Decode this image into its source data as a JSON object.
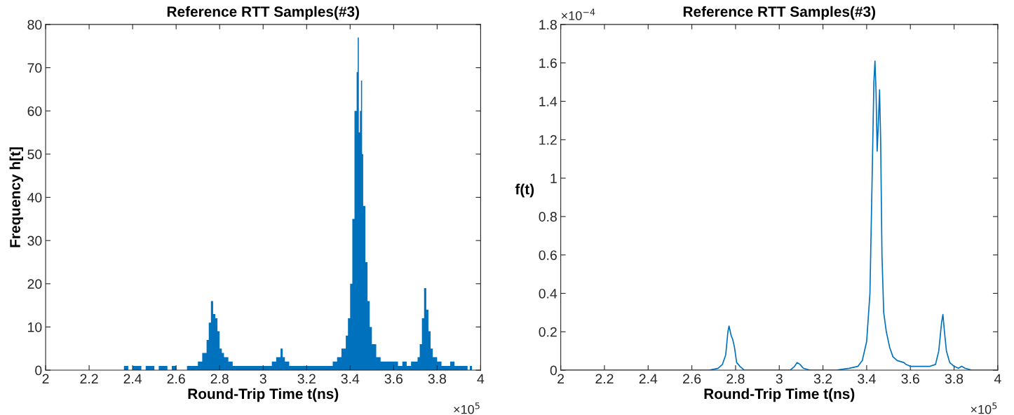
{
  "chart_data": [
    {
      "type": "histogram",
      "title": "Reference RTT Samples(#3)",
      "xlabel": "Round-Trip Time t(ns)",
      "ylabel": "Frequency h[t]",
      "color": "#0072bd",
      "bins": [
        2,
        2.36,
        2.38,
        2.4,
        2.42,
        2.44,
        2.46,
        2.48,
        2.5,
        2.52,
        2.54,
        2.56,
        2.58,
        2.6,
        2.62,
        2.65,
        2.7,
        2.72,
        2.74,
        2.75,
        2.76,
        2.77,
        2.78,
        2.79,
        2.8,
        2.81,
        2.82,
        2.84,
        2.86,
        2.88,
        3,
        3.04,
        3.06,
        3.08,
        3.09,
        3.1,
        3.12,
        3.16,
        3.2,
        3.32,
        3.34,
        3.36,
        3.38,
        3.39,
        3.4,
        3.41,
        3.42,
        3.43,
        3.435,
        3.44,
        3.445,
        3.45,
        3.455,
        3.46,
        3.47,
        3.48,
        3.49,
        3.5,
        3.52,
        3.54,
        3.6,
        3.62,
        3.64,
        3.66,
        3.68,
        3.71,
        3.72,
        3.73,
        3.74,
        3.75,
        3.76,
        3.77,
        3.78,
        3.8,
        3.82,
        3.86,
        3.88,
        3.94,
        3.95,
        3.96,
        4
      ],
      "values": [
        0,
        1,
        0,
        1,
        1,
        0,
        1,
        1,
        0,
        1,
        1,
        0,
        1,
        0,
        0,
        1,
        2,
        4,
        7,
        11,
        16,
        13,
        12,
        9,
        5,
        4,
        3,
        2,
        1,
        1,
        1,
        2,
        3,
        5,
        3,
        2,
        1,
        1,
        1,
        2,
        3,
        5,
        8,
        12,
        20,
        35,
        60,
        69,
        77,
        55,
        60,
        67,
        50,
        38,
        25,
        16,
        10,
        6,
        3,
        2,
        2,
        1,
        2,
        1,
        2,
        3,
        6,
        12,
        19,
        14,
        9,
        5,
        3,
        2,
        1,
        2,
        1,
        0,
        1,
        0
      ],
      "xlim": [
        2,
        4
      ],
      "xticks": [
        2,
        2.2,
        2.4,
        2.6,
        2.8,
        3,
        3.2,
        3.4,
        3.6,
        3.8,
        4
      ],
      "ylim": [
        0,
        80
      ],
      "yticks": [
        0,
        10,
        20,
        30,
        40,
        50,
        60,
        70,
        80
      ],
      "annotations": [
        "×10$^{5}$"
      ]
    },
    {
      "type": "line",
      "title": "Reference RTT Samples(#3)",
      "xlabel": "Round-Trip Time t(ns)",
      "ylabel": "f(t)",
      "x": [
        2,
        2.6,
        2.68,
        2.72,
        2.74,
        2.755,
        2.765,
        2.77,
        2.78,
        2.787,
        2.795,
        2.805,
        2.82,
        2.84,
        2.9,
        3,
        3.05,
        3.07,
        3.082,
        3.095,
        3.11,
        3.14,
        3.2,
        3.26,
        3.32,
        3.36,
        3.38,
        3.4,
        3.415,
        3.425,
        3.433,
        3.438,
        3.443,
        3.448,
        3.454,
        3.459,
        3.464,
        3.47,
        3.478,
        3.49,
        3.505,
        3.52,
        3.54,
        3.57,
        3.58,
        3.6,
        3.63,
        3.66,
        3.69,
        3.715,
        3.73,
        3.743,
        3.749,
        3.756,
        3.765,
        3.78,
        3.8,
        3.82,
        3.835,
        3.85,
        3.88,
        3.92,
        4
      ],
      "series": [
        {
          "color": "#0072bd",
          "values": [
            0,
            0,
            0,
            0.01,
            0.03,
            0.08,
            0.2,
            0.23,
            0.18,
            0.16,
            0.12,
            0.04,
            0.02,
            0,
            0,
            0,
            0,
            0.02,
            0.04,
            0.03,
            0.01,
            0,
            0,
            0,
            0.01,
            0.02,
            0.05,
            0.15,
            0.4,
            1.0,
            1.5,
            1.61,
            1.45,
            1.14,
            1.3,
            1.46,
            1.2,
            0.6,
            0.3,
            0.2,
            0.12,
            0.07,
            0.05,
            0.04,
            0.03,
            0.02,
            0.02,
            0.02,
            0.02,
            0.03,
            0.1,
            0.25,
            0.29,
            0.2,
            0.1,
            0.04,
            0.02,
            0.01,
            0.02,
            0.01,
            0,
            0,
            0
          ]
        }
      ],
      "xlim": [
        2,
        4
      ],
      "xticks": [
        2,
        2.2,
        2.4,
        2.6,
        2.8,
        3,
        3.2,
        3.4,
        3.6,
        3.8,
        4
      ],
      "ylim": [
        0,
        1.8
      ],
      "yticks": [
        0,
        0.2,
        0.4,
        0.6,
        0.8,
        1,
        1.2,
        1.4,
        1.6,
        1.8
      ],
      "annotations": [
        "×10$^{5}$",
        "×10$^{−4}$"
      ]
    }
  ]
}
